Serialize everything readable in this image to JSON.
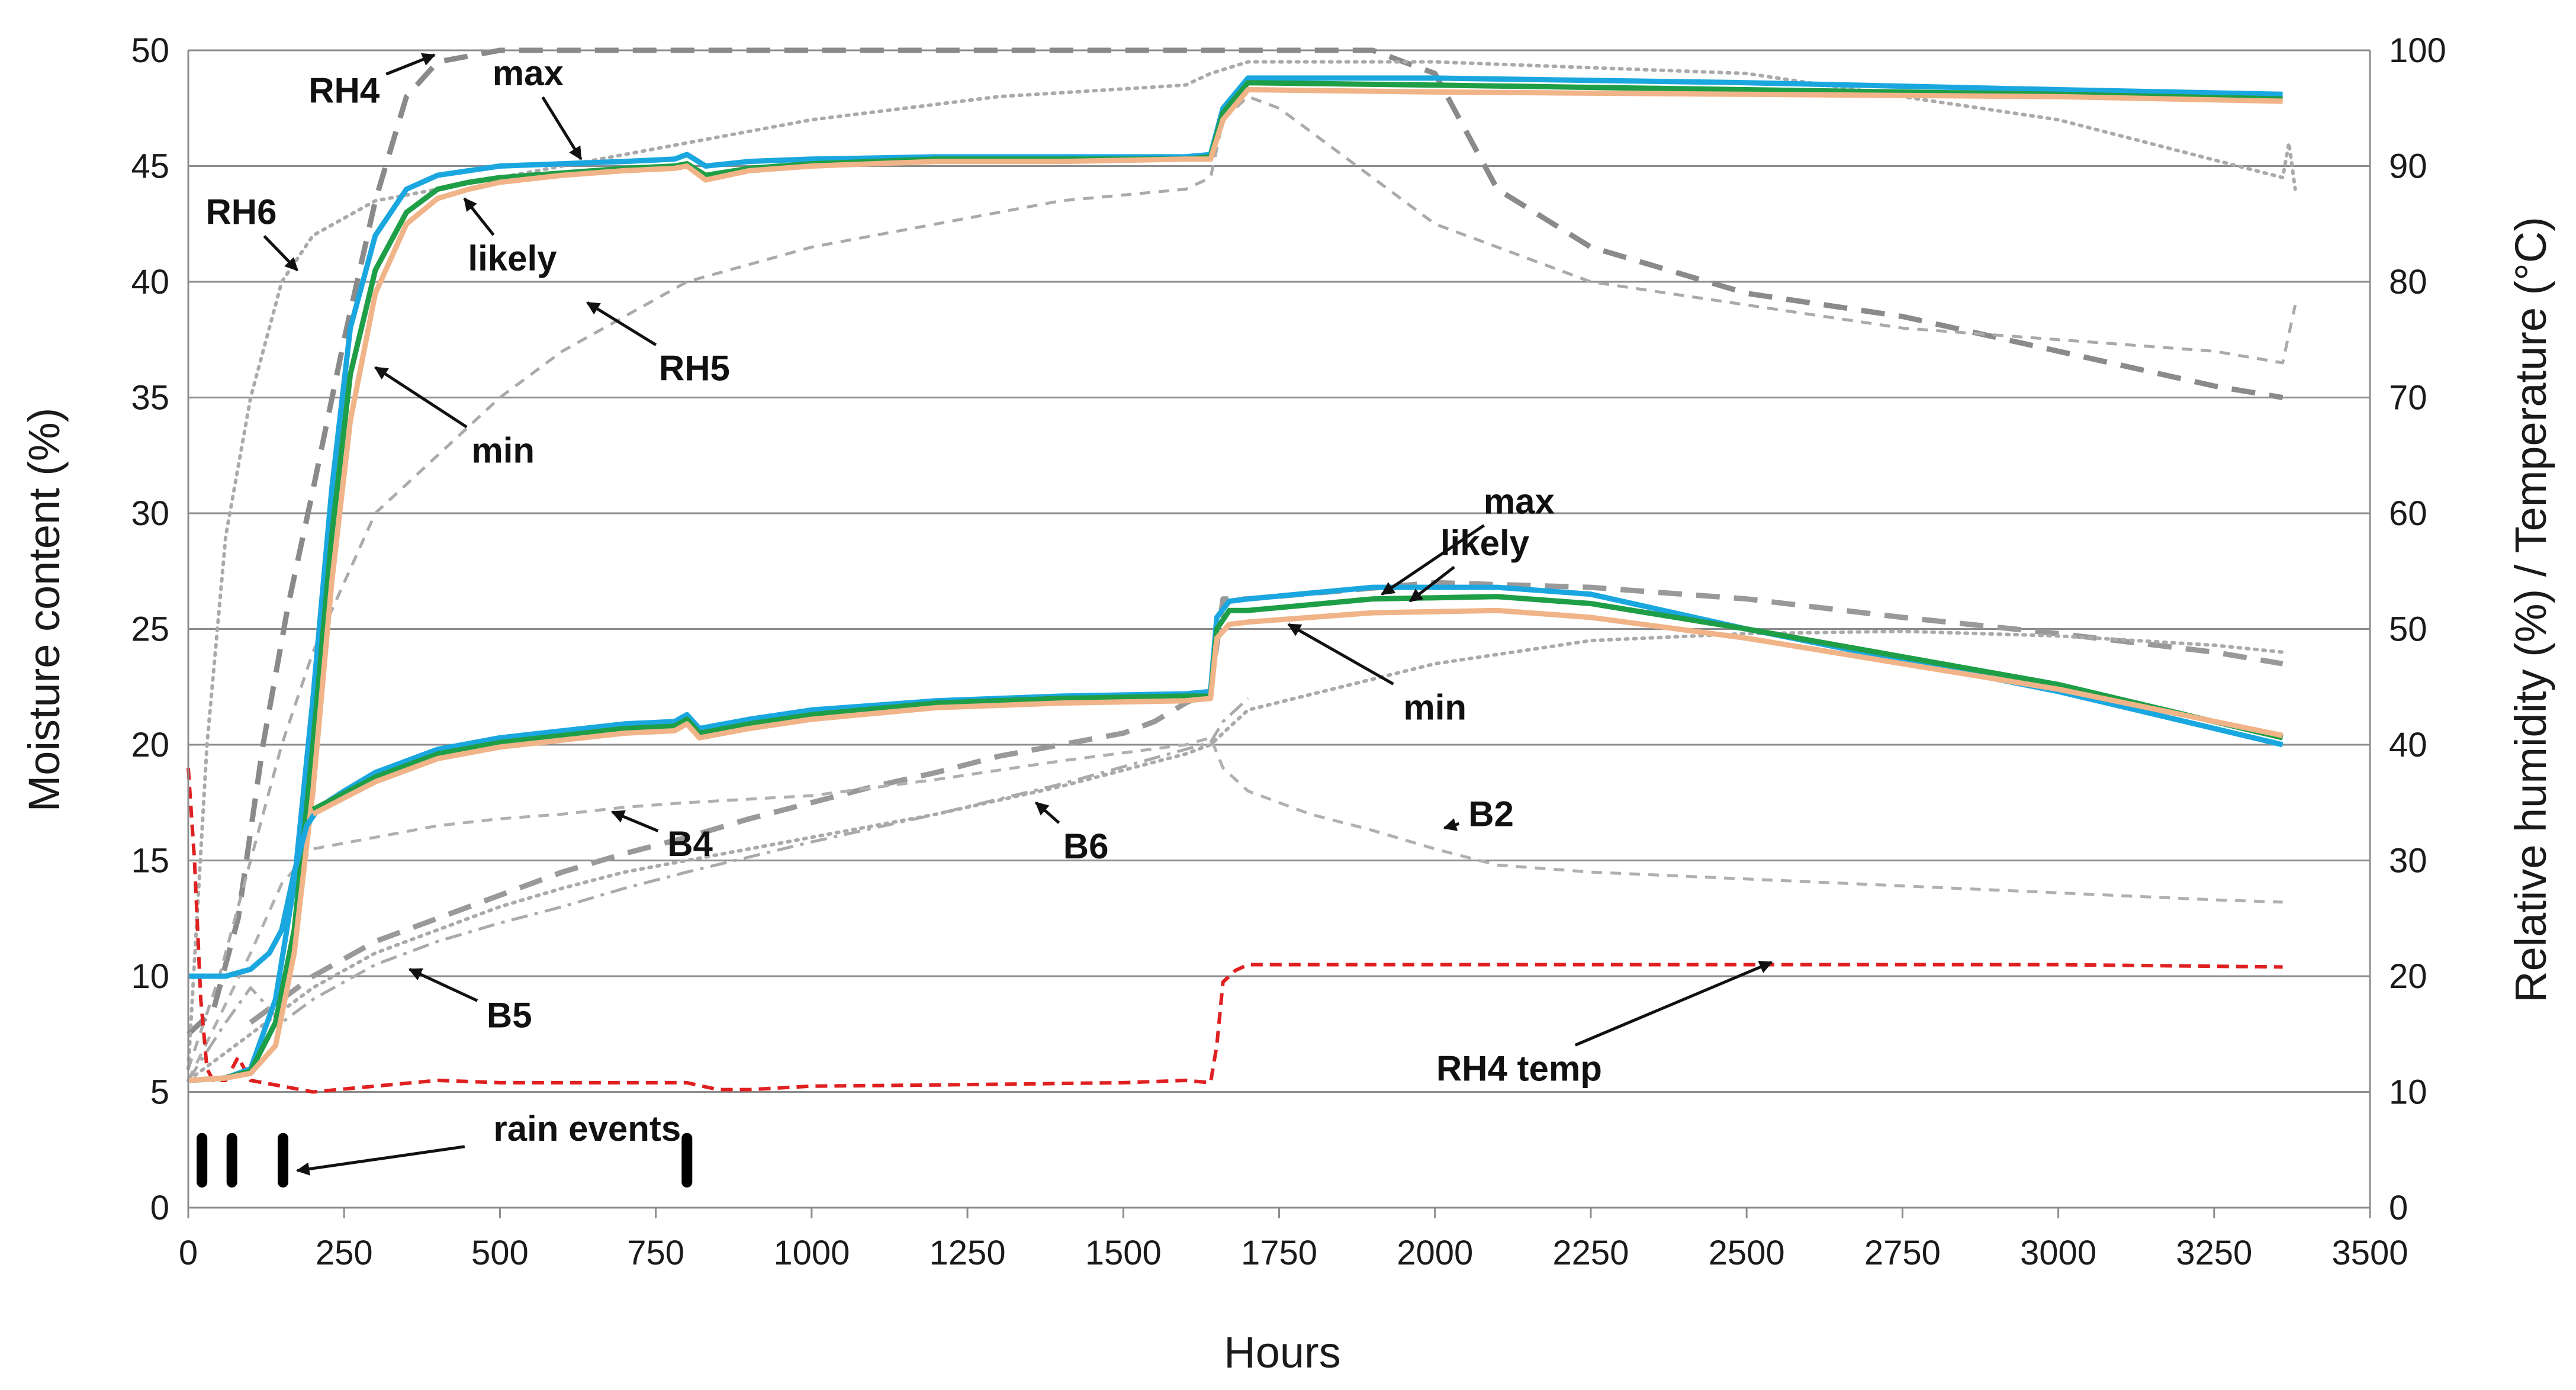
{
  "chart_data": {
    "type": "line",
    "title": "",
    "xlabel": "Hours",
    "ylabel_left": "Moisture content (%)",
    "ylabel_right": "Relative humidity (%) / Temperature (°C)",
    "xlim": [
      0,
      3500
    ],
    "ylim_left": [
      0,
      50
    ],
    "ylim_right": [
      0,
      100
    ],
    "x_ticks": [
      "0",
      "250",
      "500",
      "750",
      "1000",
      "1250",
      "1500",
      "1750",
      "2000",
      "2250",
      "2500",
      "2750",
      "3000",
      "3250",
      "3500"
    ],
    "y_left_ticks": [
      "0",
      "5",
      "10",
      "15",
      "20",
      "25",
      "30",
      "35",
      "40",
      "45",
      "50"
    ],
    "y_right_ticks": [
      "0",
      "10",
      "20",
      "30",
      "40",
      "50",
      "60",
      "70",
      "80",
      "90",
      "100"
    ],
    "grid": "horizontal",
    "series": [
      {
        "name": "Upper group moisture max",
        "axis": "left",
        "color": "#1aa7e0",
        "style": "solid",
        "x": [
          0,
          60,
          100,
          140,
          170,
          200,
          230,
          260,
          300,
          350,
          400,
          450,
          500,
          600,
          700,
          780,
          800,
          830,
          900,
          1000,
          1200,
          1400,
          1600,
          1640,
          1660,
          1700,
          2000,
          2500,
          3000,
          3360
        ],
        "y": [
          5.5,
          5.6,
          6.0,
          9,
          14,
          22,
          31,
          38,
          42,
          44,
          44.6,
          44.8,
          45.0,
          45.1,
          45.2,
          45.3,
          45.5,
          45.0,
          45.2,
          45.3,
          45.4,
          45.4,
          45.4,
          45.5,
          47.5,
          48.8,
          48.8,
          48.6,
          48.3,
          48.1
        ]
      },
      {
        "name": "Upper group moisture likely",
        "axis": "left",
        "color": "#1e9e46",
        "style": "solid",
        "x": [
          0,
          60,
          100,
          140,
          170,
          200,
          230,
          260,
          300,
          350,
          400,
          450,
          500,
          600,
          700,
          780,
          800,
          830,
          900,
          1000,
          1200,
          1400,
          1600,
          1640,
          1660,
          1700,
          2000,
          2500,
          3000,
          3360
        ],
        "y": [
          5.5,
          5.6,
          5.9,
          8,
          12,
          20,
          29,
          36,
          40.5,
          43,
          44,
          44.3,
          44.5,
          44.7,
          44.9,
          45.0,
          45.1,
          44.6,
          44.9,
          45.1,
          45.3,
          45.3,
          45.3,
          45.4,
          47.3,
          48.6,
          48.5,
          48.3,
          48.1,
          47.9
        ]
      },
      {
        "name": "Upper group moisture min",
        "axis": "left",
        "color": "#f0b488",
        "style": "solid",
        "x": [
          0,
          60,
          100,
          140,
          170,
          200,
          230,
          260,
          300,
          350,
          400,
          450,
          500,
          600,
          700,
          780,
          800,
          830,
          900,
          1000,
          1200,
          1400,
          1600,
          1640,
          1660,
          1700,
          2000,
          2500,
          3000,
          3360
        ],
        "y": [
          5.5,
          5.6,
          5.8,
          7,
          11,
          18,
          27,
          34,
          39.5,
          42.5,
          43.6,
          44.0,
          44.3,
          44.6,
          44.8,
          44.9,
          45.0,
          44.4,
          44.8,
          45.0,
          45.2,
          45.2,
          45.3,
          45.3,
          47.0,
          48.3,
          48.2,
          48.1,
          48.0,
          47.8
        ]
      },
      {
        "name": "Lower group moisture max",
        "axis": "left",
        "color": "#1aa7e0",
        "style": "solid",
        "x": [
          0,
          60,
          100,
          130,
          150,
          170,
          190,
          210,
          250,
          300,
          400,
          500,
          600,
          700,
          780,
          800,
          820,
          900,
          1000,
          1200,
          1400,
          1600,
          1640,
          1650,
          1670,
          1700,
          1900,
          2100,
          2250,
          2500,
          3000,
          3360
        ],
        "y": [
          10,
          10,
          10.3,
          11,
          12,
          14.5,
          16.5,
          17.3,
          18,
          18.8,
          19.8,
          20.3,
          20.6,
          20.9,
          21.0,
          21.3,
          20.7,
          21.1,
          21.5,
          21.9,
          22.1,
          22.2,
          22.3,
          25.5,
          26.2,
          26.3,
          26.8,
          26.8,
          26.5,
          25.0,
          22.3,
          20.0
        ]
      },
      {
        "name": "Lower group moisture likely",
        "axis": "left",
        "color": "#1e9e46",
        "style": "solid",
        "x": [
          200,
          250,
          300,
          400,
          500,
          600,
          700,
          780,
          800,
          820,
          900,
          1000,
          1200,
          1400,
          1600,
          1640,
          1650,
          1670,
          1700,
          1900,
          2100,
          2250,
          2500,
          3000,
          3360
        ],
        "y": [
          17.2,
          17.9,
          18.6,
          19.6,
          20.1,
          20.4,
          20.7,
          20.8,
          21.1,
          20.5,
          20.9,
          21.3,
          21.8,
          22.0,
          22.1,
          22.1,
          25.0,
          25.8,
          25.8,
          26.3,
          26.4,
          26.1,
          25.0,
          22.6,
          20.3
        ]
      },
      {
        "name": "Lower group moisture min",
        "axis": "left",
        "color": "#f0b488",
        "style": "solid",
        "x": [
          200,
          250,
          300,
          400,
          500,
          600,
          700,
          780,
          800,
          820,
          900,
          1000,
          1200,
          1400,
          1600,
          1640,
          1650,
          1670,
          1700,
          1900,
          2100,
          2250,
          2500,
          3000,
          3360
        ],
        "y": [
          17.0,
          17.7,
          18.4,
          19.4,
          19.9,
          20.2,
          20.5,
          20.6,
          20.9,
          20.3,
          20.7,
          21.1,
          21.6,
          21.8,
          21.9,
          22.0,
          24.6,
          25.2,
          25.3,
          25.7,
          25.8,
          25.5,
          24.6,
          22.4,
          20.4
        ]
      },
      {
        "name": "RH4",
        "axis": "right",
        "color": "#8a8a8a",
        "style": "longdash",
        "x": [
          0,
          40,
          80,
          120,
          160,
          200,
          250,
          300,
          350,
          400,
          500,
          1000,
          1500,
          1900,
          2000,
          2100,
          2250,
          2500,
          2750,
          3000,
          3250,
          3360
        ],
        "y": [
          15,
          17,
          25,
          40,
          52,
          62,
          75,
          87,
          96,
          99,
          100,
          100,
          100,
          100,
          98,
          88,
          83,
          79,
          77,
          74,
          71,
          70
        ]
      },
      {
        "name": "RH6",
        "axis": "right",
        "color": "#aaaaaa",
        "style": "dotted",
        "x": [
          0,
          30,
          60,
          100,
          150,
          200,
          300,
          400,
          500,
          700,
          1000,
          1300,
          1600,
          1640,
          1700,
          2000,
          2500,
          3000,
          3360,
          3370,
          3380
        ],
        "y": [
          12,
          40,
          58,
          70,
          80,
          84,
          87,
          88,
          89,
          91,
          94,
          96,
          97,
          98,
          99,
          99,
          98,
          94,
          89,
          92,
          88
        ]
      },
      {
        "name": "RH5",
        "axis": "right",
        "color": "#aaaaaa",
        "style": "shortdash",
        "x": [
          0,
          50,
          100,
          150,
          200,
          300,
          400,
          500,
          600,
          700,
          800,
          1000,
          1200,
          1400,
          1600,
          1640,
          1660,
          1700,
          1750,
          1800,
          2000,
          2250,
          2500,
          2750,
          3000,
          3250,
          3360,
          3380
        ],
        "y": [
          12,
          20,
          30,
          40,
          48,
          60,
          65,
          70,
          74,
          77,
          80,
          83,
          85,
          87,
          88,
          89,
          94,
          96,
          95,
          93,
          85,
          80,
          78,
          76,
          75,
          74,
          73,
          78
        ]
      },
      {
        "name": "B4",
        "axis": "left",
        "color": "#999999",
        "style": "longdash",
        "x": [
          100,
          200,
          300,
          400,
          500,
          600,
          700,
          800,
          900,
          1000,
          1100,
          1200,
          1300,
          1400,
          1500,
          1550,
          1600,
          1640,
          1660,
          1700,
          2000,
          2250,
          2500,
          2750,
          3000,
          3250,
          3360
        ],
        "y": [
          8,
          10,
          11.5,
          12.5,
          13.5,
          14.5,
          15.3,
          16.0,
          16.8,
          17.5,
          18.2,
          18.8,
          19.5,
          20.0,
          20.5,
          21.0,
          21.8,
          22.3,
          26.3,
          26.3,
          27.0,
          26.8,
          26.3,
          25.5,
          24.8,
          24.0,
          23.5
        ]
      },
      {
        "name": "B6",
        "axis": "left",
        "color": "#aaaaaa",
        "style": "dotted",
        "x": [
          0,
          100,
          200,
          300,
          400,
          500,
          600,
          700,
          800,
          1000,
          1200,
          1400,
          1600,
          1640,
          1700,
          2000,
          2250,
          2500,
          2750,
          3000,
          3250,
          3360
        ],
        "y": [
          5.5,
          7.5,
          9.5,
          11,
          12,
          13,
          13.8,
          14.5,
          15,
          16,
          17,
          18.2,
          19.6,
          20,
          21.5,
          23.5,
          24.5,
          24.8,
          24.9,
          24.7,
          24.3,
          24.0
        ]
      },
      {
        "name": "B2",
        "axis": "left",
        "color": "#b0b0b0",
        "style": "shortdash",
        "x": [
          0,
          100,
          150,
          200,
          300,
          400,
          500,
          600,
          700,
          800,
          1000,
          1200,
          1400,
          1600,
          1640,
          1660,
          1700,
          1800,
          1900,
          2000,
          2100,
          2250,
          2500,
          2750,
          3000,
          3250,
          3360
        ],
        "y": [
          5.5,
          11,
          14,
          15.5,
          16.0,
          16.5,
          16.8,
          17.0,
          17.3,
          17.5,
          17.8,
          18.5,
          19.3,
          20.0,
          20.3,
          19.0,
          18.0,
          17.0,
          16.3,
          15.5,
          14.8,
          14.5,
          14.2,
          13.9,
          13.6,
          13.3,
          13.2
        ]
      },
      {
        "name": "B5",
        "axis": "left",
        "color": "#aaaaaa",
        "style": "dashdot",
        "x": [
          0,
          60,
          100,
          150,
          200,
          300,
          400,
          500,
          600,
          700,
          800,
          1000,
          1200,
          1400,
          1600,
          1640,
          1660,
          1700
        ],
        "y": [
          5.5,
          8,
          9.5,
          8,
          9,
          10.5,
          11.5,
          12.3,
          13,
          13.8,
          14.5,
          15.8,
          17,
          18.3,
          19.8,
          20.1,
          21,
          22
        ]
      },
      {
        "name": "RH4 temp",
        "axis": "right",
        "color": "#e02020",
        "style": "dashed",
        "x": [
          0,
          10,
          20,
          30,
          40,
          60,
          80,
          100,
          150,
          200,
          300,
          400,
          500,
          800,
          850,
          900,
          1000,
          1200,
          1500,
          1600,
          1640,
          1650,
          1660,
          1680,
          1700,
          2000,
          2500,
          3000,
          3360
        ],
        "y": [
          38,
          30,
          18,
          12,
          11,
          11,
          13,
          11,
          10.5,
          10,
          10.5,
          11,
          10.8,
          10.8,
          10.2,
          10.2,
          10.5,
          10.6,
          10.8,
          11,
          10.8,
          14,
          19.5,
          20.5,
          21,
          21,
          21,
          21,
          20.8
        ]
      }
    ],
    "rain_events_hours": [
      22,
      70,
      152,
      800
    ],
    "rain_events_label": "rain events",
    "annotations": [
      {
        "id": "ann-rh4",
        "text": "RH4",
        "tx": 250,
        "ty": 96.5,
        "ax": 395,
        "ay": 99.6,
        "axis": "right",
        "arrow": true
      },
      {
        "id": "ann-rh6",
        "text": "RH6",
        "tx": 85,
        "ty": 86,
        "ax": 175,
        "ay": 81,
        "axis": "right",
        "arrow": true
      },
      {
        "id": "ann-upper-max",
        "text": "max",
        "tx": 545,
        "ty": 49.0,
        "ax": 630,
        "ay": 45.3,
        "axis": "left",
        "arrow": true
      },
      {
        "id": "ann-upper-likely",
        "text": "likely",
        "tx": 520,
        "ty": 41.0,
        "ax": 443,
        "ay": 43.6,
        "axis": "left",
        "arrow": true
      },
      {
        "id": "ann-upper-min",
        "text": "min",
        "tx": 505,
        "ty": 32.7,
        "ax": 300,
        "ay": 36.3,
        "axis": "left",
        "arrow": true
      },
      {
        "id": "ann-rh5",
        "text": "RH5",
        "tx": 812,
        "ty": 72.5,
        "ax": 640,
        "ay": 78.2,
        "axis": "right",
        "arrow": true
      },
      {
        "id": "ann-lower-max",
        "text": "max",
        "tx": 2135,
        "ty": 30.5,
        "ax": 1915,
        "ay": 26.5,
        "axis": "left",
        "arrow": true
      },
      {
        "id": "ann-lower-likely",
        "text": "likely",
        "tx": 2080,
        "ty": 28.7,
        "ax": 1960,
        "ay": 26.2,
        "axis": "left",
        "arrow": true
      },
      {
        "id": "ann-lower-min",
        "text": "min",
        "tx": 2000,
        "ty": 21.6,
        "ax": 1765,
        "ay": 25.2,
        "axis": "left",
        "arrow": true
      },
      {
        "id": "ann-b2",
        "text": "B2",
        "tx": 2090,
        "ty": 17.0,
        "ax": 2015,
        "ay": 16.4,
        "axis": "left",
        "arrow": true
      },
      {
        "id": "ann-b4",
        "text": "B4",
        "tx": 805,
        "ty": 15.7,
        "ax": 680,
        "ay": 17.1,
        "axis": "left",
        "arrow": true
      },
      {
        "id": "ann-b6",
        "text": "B6",
        "tx": 1440,
        "ty": 15.6,
        "ax": 1360,
        "ay": 17.5,
        "axis": "left",
        "arrow": true
      },
      {
        "id": "ann-b5",
        "text": "B5",
        "tx": 515,
        "ty": 8.3,
        "ax": 355,
        "ay": 10.3,
        "axis": "left",
        "arrow": true
      },
      {
        "id": "ann-rh4-temp",
        "text": "RH4 temp",
        "tx": 2135,
        "ty": 12.0,
        "ax": 2540,
        "ay": 21.2,
        "axis": "right",
        "arrow": true
      },
      {
        "id": "ann-rain-events",
        "text": "rain events",
        "tx": 640,
        "ty": 3.4,
        "ax": 175,
        "ay": 1.6,
        "axis": "left",
        "arrow": true
      }
    ]
  }
}
